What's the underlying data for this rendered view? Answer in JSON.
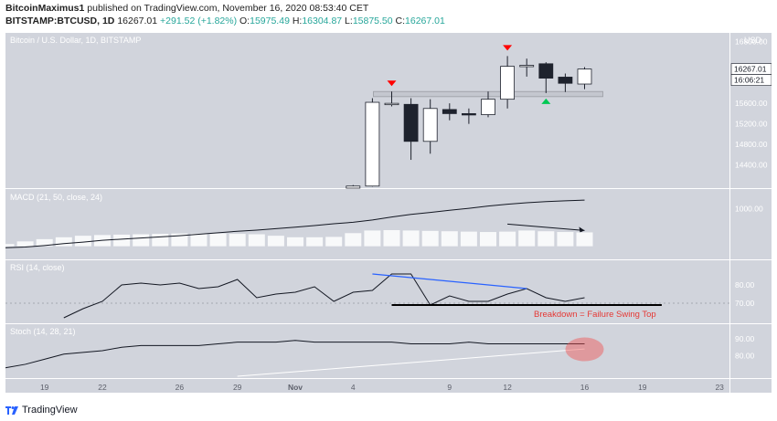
{
  "header": {
    "author": "BitcoinMaximus1",
    "published_text": "published on TradingView.com, November 16, 2020 08:53:40 CET",
    "symbol": "BITSTAMP:BTCUSD, 1D",
    "price": "16267.01",
    "change": "+291.52 (+1.82%)",
    "o_label": "O:",
    "o_value": "15975.49",
    "h_label": "H:",
    "h_value": "16304.87",
    "l_label": "L:",
    "l_value": "15875.50",
    "c_label": "C:",
    "c_value": "16267.01"
  },
  "colors": {
    "panel_bg": "#d1d4dc",
    "bull_body": "#ffffff",
    "bear_body": "#1e222d",
    "red_marker": "#ff0000",
    "green_marker": "#00c853",
    "blue_trendline": "#2962ff",
    "annotation_red": "#e53935"
  },
  "chart_data": {
    "type": "candlestick",
    "title": "Bitcoin / U.S. Dollar, 1D, BITSTAMP",
    "currency": "USD",
    "ylim": [
      13950,
      16900
    ],
    "price_ticks": [
      "16800.00",
      "15600.00",
      "15200.00",
      "14800.00",
      "14400.00"
    ],
    "price_ticks_numeric": [
      16800,
      15600,
      15200,
      14800,
      14400
    ],
    "last_price_label": "16267.01",
    "countdown_label": "16:06:21",
    "x_tick_labels": [
      "19",
      "22",
      "26",
      "29",
      "Nov",
      "4",
      "9",
      "12",
      "16",
      "19",
      "23"
    ],
    "x_tick_days": [
      -13,
      -10,
      -6,
      -3,
      0,
      3,
      8,
      11,
      15,
      18,
      22
    ],
    "day_offset_note": "",
    "candles": [
      {
        "day": 3,
        "o": 13950,
        "h": 14010,
        "l": 13950,
        "c": 13990
      },
      {
        "day": 4,
        "o": 13990,
        "h": 15700,
        "l": 13980,
        "c": 15620
      },
      {
        "day": 5,
        "o": 15600,
        "h": 15830,
        "l": 15540,
        "c": 15600
      },
      {
        "day": 6,
        "o": 15580,
        "h": 15700,
        "l": 14500,
        "c": 14860
      },
      {
        "day": 7,
        "o": 14860,
        "h": 15680,
        "l": 14620,
        "c": 15500
      },
      {
        "day": 8,
        "o": 15480,
        "h": 15600,
        "l": 15270,
        "c": 15400
      },
      {
        "day": 9,
        "o": 15400,
        "h": 15500,
        "l": 15200,
        "c": 15380
      },
      {
        "day": 10,
        "o": 15380,
        "h": 15830,
        "l": 15330,
        "c": 15680
      },
      {
        "day": 11,
        "o": 15680,
        "h": 16520,
        "l": 15500,
        "c": 16320
      },
      {
        "day": 12,
        "o": 16320,
        "h": 16470,
        "l": 16120,
        "c": 16340
      },
      {
        "day": 13,
        "o": 16370,
        "h": 16400,
        "l": 15800,
        "c": 16090
      },
      {
        "day": 14,
        "o": 16110,
        "h": 16180,
        "l": 15820,
        "c": 15990
      },
      {
        "day": 15,
        "o": 15975.49,
        "h": 16304.87,
        "l": 15875.5,
        "c": 16267.01
      }
    ],
    "resistance_zone": {
      "from_day": 5,
      "to_day": 15,
      "low": 15730,
      "high": 15830
    },
    "red_markers_days": [
      5,
      11
    ],
    "green_marker_day": 13,
    "macd": {
      "label": "MACD (21, 50, close, 24)",
      "ylim": [
        -300,
        1500
      ],
      "tick": "1000.00",
      "tick_value": 1000,
      "line": [
        -80,
        -60,
        -40,
        -20,
        20,
        70,
        110,
        160,
        190,
        220,
        250,
        280,
        320,
        360,
        400,
        430,
        470,
        510,
        550,
        600,
        640,
        700,
        780,
        850,
        900,
        960,
        1010,
        1070,
        1120,
        1160,
        1190,
        1210,
        1230
      ],
      "histogram": [
        30,
        40,
        60,
        130,
        190,
        240,
        280,
        300,
        310,
        320,
        330,
        340,
        340,
        340,
        330,
        320,
        280,
        240,
        240,
        250,
        350,
        420,
        430,
        420,
        410,
        400,
        390,
        380,
        390,
        420,
        400,
        380,
        370
      ],
      "arrow": {
        "from_day": 11,
        "to_day": 15,
        "from": 590,
        "to": 420
      }
    },
    "rsi": {
      "label": "RSI (14, close)",
      "ylim": [
        60,
        93
      ],
      "ticks": [
        "80.00",
        "70.00"
      ],
      "ticks_numeric": [
        80,
        70
      ],
      "values": [
        62,
        67,
        71,
        80,
        81,
        80,
        81,
        78,
        79,
        83,
        73,
        75,
        76,
        79,
        71,
        76,
        77,
        86,
        86,
        69,
        74,
        71,
        71,
        75,
        78,
        73,
        71,
        73
      ],
      "blue_trendline": {
        "from_day": 4,
        "to_day": 12,
        "from": 86,
        "to": 78
      },
      "support_line": {
        "from_day": 5,
        "to_day": 19,
        "value": 69
      },
      "annotation": "Breakdown = Failure Swing Top"
    },
    "stoch": {
      "label": "Stoch (14, 28, 21)",
      "ylim": [
        68,
        98
      ],
      "ticks": [
        "90.00",
        "80.00"
      ],
      "ticks_numeric": [
        90,
        80
      ],
      "k_values": [
        68,
        71,
        73,
        75,
        78,
        81,
        82,
        83,
        85,
        86,
        86,
        86,
        86,
        87,
        88,
        88,
        88,
        89,
        88,
        88,
        88,
        88,
        88,
        87,
        87,
        87,
        88,
        87,
        87,
        87,
        87,
        87,
        87
      ],
      "d_trend": {
        "from_day": -3,
        "to_day": 15,
        "from": 68,
        "to": 84
      },
      "highlight_day": 15
    }
  },
  "footer": {
    "brand": "TradingView"
  }
}
